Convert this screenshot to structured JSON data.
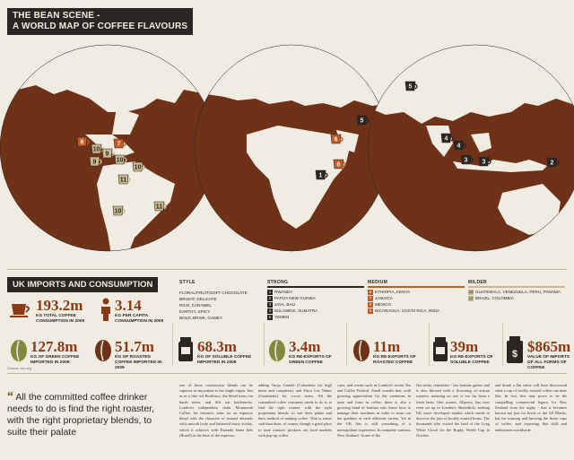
{
  "header": {
    "line1": "THE BEAN SCENE -",
    "line2": "A WORLD MAP OF COFFEE FLAVOURS"
  },
  "colors": {
    "ocean": "#6e3218",
    "land": "#f1ece1",
    "accent": "#8a3a17",
    "dark": "#2a2622",
    "green": "#7f8a3d",
    "orange": "#c45a23",
    "sky": "#f1ece1"
  },
  "markers": [
    {
      "label": "8",
      "color": "#c45a23"
    },
    {
      "label": "10",
      "color": "#c9b98f"
    },
    {
      "label": "7",
      "color": "#c45a23"
    },
    {
      "label": "9",
      "color": "#c9b98f"
    },
    {
      "label": "10",
      "color": "#c9b98f"
    },
    {
      "label": "9",
      "color": "#c9b98f"
    },
    {
      "label": "10",
      "color": "#c9b98f"
    },
    {
      "label": "11",
      "color": "#c9b98f"
    },
    {
      "label": "10",
      "color": "#c9b98f"
    },
    {
      "label": "11",
      "color": "#c9b98f"
    },
    {
      "label": "1",
      "color": "#2a2622"
    },
    {
      "label": "6",
      "color": "#c45a23"
    },
    {
      "label": "6",
      "color": "#c45a23"
    },
    {
      "label": "5",
      "color": "#2a2622"
    },
    {
      "label": "5",
      "color": "#2a2622"
    },
    {
      "label": "4",
      "color": "#2a2622"
    },
    {
      "label": "3",
      "color": "#2a2622"
    },
    {
      "label": "3",
      "color": "#2a2622"
    },
    {
      "label": "4",
      "color": "#2a2622"
    },
    {
      "label": "2",
      "color": "#2a2622"
    }
  ],
  "section": {
    "title": "UK IMPORTS AND CONSUMPTION"
  },
  "legend": {
    "style_header": "STYLE",
    "strong_header": "STRONG",
    "medium_header": "MEDIUM",
    "milder_header": "MILDER",
    "styles": [
      "FLORAL/FRUIT/SOFT CHOCOLATE",
      "BRIGHT, DELICATE",
      "RICH, CARAMEL",
      "EARTHY, SPICY",
      "BOLD, BRISK, GAMEY"
    ],
    "strong": [
      {
        "num": "1",
        "name": "RWANDA"
      },
      {
        "num": "2",
        "name": "PAPUA NEW GUINEA"
      },
      {
        "num": "3",
        "name": "JAVA, BALI"
      },
      {
        "num": "4",
        "name": "SULAWESI, SUMATRA"
      },
      {
        "num": "5",
        "name": "YEMEN"
      }
    ],
    "medium": [
      {
        "num": "6",
        "name": "ETHIOPIA, KENYA"
      },
      {
        "num": "7",
        "name": "JAMAICA"
      },
      {
        "num": "8",
        "name": "MEXICO"
      },
      {
        "num": "9",
        "name": "NICARAGUA, COSTA RICA, INDIA"
      }
    ],
    "milder": [
      {
        "num": "10",
        "name": "GUATEMALA, VENEZUELA, PERU, PANAMA"
      },
      {
        "num": "11",
        "name": "BRAZIL, COLOMBIA"
      }
    ]
  },
  "stats": [
    {
      "value": "193.2m",
      "label": "KG TOTAL COFFEE CONSUMPTION IN 2009"
    },
    {
      "value": "3.14",
      "label": "KG PER CAPITA CONSUMPTION IN 2009"
    },
    {
      "value": "127.8m",
      "label": "KG OF GREEN COFFEE IMPORTED IN 2009"
    },
    {
      "value": "51.7m",
      "label": "KG OF ROASTED COFFEE IMPORTED IN 2009"
    },
    {
      "value": "68.3m",
      "label": "KG OF SOLUBLE COFFEE IMPORTED IN 2009"
    },
    {
      "value": "3.4m",
      "label": "KG RE-EXPORTS OF GREEN COFFEE"
    },
    {
      "value": "11m",
      "label": "KG RE-EXPORTS OF ROASTED COFFEE"
    },
    {
      "value": "39m",
      "label": "KG RE-EXPORTS OF SOLUBLE COFFEE"
    },
    {
      "value": "$865m",
      "label": "VALUE OF IMPORTS OF ALL FORMS OF COFFEE"
    }
  ],
  "source": "Source: ico.org",
  "quote": "All the committed coffee drinker needs to do is find the right roaster, with the right proprietary blends, to suite their palate",
  "columns": [
    "one of those connoisseur blends can be superior in enjoyment to the single origin. Just as in a fine red Bordeaux, the blend irons out harsh notes, and fills out bottlenecks. London's independent chain Monmouth Coffee, for instance, aims for an espresso blend with the character of toasted almonds with smooth body and balanced fruity acidity, which it achieves with Fazenda Santa Inês (Brazil) as the base of the espresso,",
    "adding Tunja Grande (Colombia) for high notes and complexity and Finca Las Nubes (Guatemala) for cocoa notes. All the committed coffee consumer needs to do is to find the right roaster, with the right proprietary blends, to suit their palate and their method of making coffee. That is easier said than done, of course, though a good place to taste roasters' products are food markets with pop-up coffee",
    "carts, and events such as London's recent Tea and Coffee Festival. Small wonder that, with growing appreciation for the variations in taste and form in coffee, there is also a growing band of baristas who know how to manage their machines in order to tease out the qualities of each different variety. Yet in the UK this is still something of a metropolitan experience. In complete contrast, New Zealand - home of the",
    "flat white, remember - has baristas galore and is also blessed with a flowering of artisan roasters, meaning no one is too far from a fresh bean. One roaster, Allpress, has now even set up in London's Shoreditch, seeking UK more developed market which needs to discover the joys of locally roasted beans. The thousands who visited the land of the Long White Cloud for the Rugby World Cup in October",
    "and drank a flat white will have discovered what a cup of freshly roasted coffee can taste like. In fact, this may prove to be the compelling commercial legacy for New Zealand from the rugby - that it becomes known not just for kiwis or the All Blacks, but for roasting and brewing the finest cups of coffee, and exporting that skill and enthusiasm worldwide."
  ]
}
